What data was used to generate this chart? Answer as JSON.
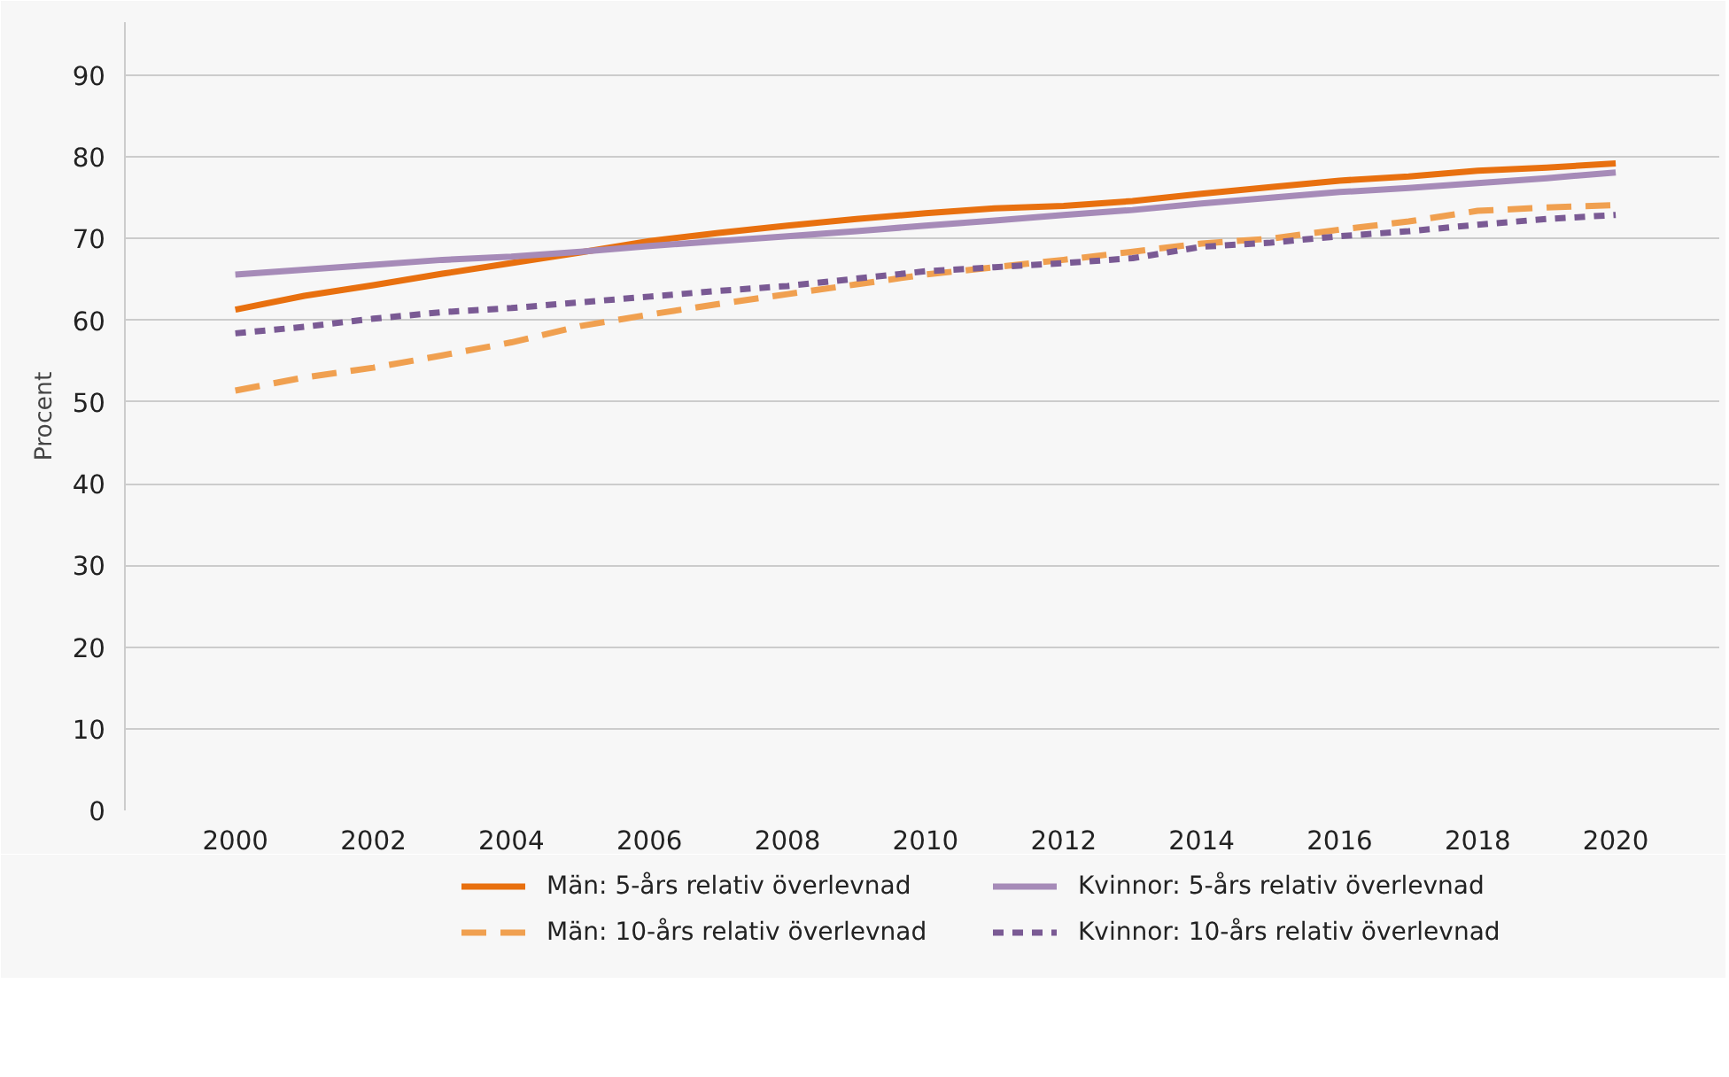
{
  "chart_data": {
    "type": "line",
    "ylabel": "Procent",
    "x": [
      2000,
      2001,
      2002,
      2003,
      2004,
      2005,
      2006,
      2007,
      2008,
      2009,
      2010,
      2011,
      2012,
      2013,
      2014,
      2015,
      2016,
      2017,
      2018,
      2019,
      2020
    ],
    "series": [
      {
        "name": "Män: 5-års relativ överlevnad",
        "color": "#e8700f",
        "line_style": "solid",
        "values": [
          61.3,
          63,
          64.3,
          65.7,
          67,
          68.3,
          69.7,
          70.7,
          71.6,
          72.4,
          73.1,
          73.7,
          74,
          74.6,
          75.5,
          76.3,
          77.1,
          77.6,
          78.3,
          78.7,
          79.2
        ]
      },
      {
        "name": "Män: 10-års relativ överlevnad",
        "color": "#f0a050",
        "line_style": "dashed",
        "values": [
          51.4,
          53,
          54.2,
          55.7,
          57.3,
          59.3,
          60.7,
          62,
          63.2,
          64.4,
          65.6,
          66.5,
          67.4,
          68.4,
          69.4,
          70,
          71.1,
          72.1,
          73.4,
          73.8,
          74.1
        ]
      },
      {
        "name": "Kvinnor: 5-års relativ överlevnad",
        "color": "#a68bb8",
        "line_style": "solid",
        "values": [
          65.6,
          66.2,
          66.8,
          67.4,
          67.8,
          68.4,
          69.1,
          69.7,
          70.3,
          70.9,
          71.6,
          72.2,
          72.9,
          73.5,
          74.3,
          75,
          75.7,
          76.2,
          76.8,
          77.4,
          78.1
        ]
      },
      {
        "name": "Kvinnor: 10-års relativ överlevnad",
        "color": "#7a5a94",
        "line_style": "dotted",
        "values": [
          58.4,
          59.2,
          60.2,
          61,
          61.5,
          62.2,
          62.9,
          63.6,
          64.2,
          65.1,
          66,
          66.5,
          67,
          67.6,
          69,
          69.5,
          70.3,
          70.9,
          71.7,
          72.4,
          72.9
        ]
      }
    ],
    "xlim": [
      1998.4,
      2021.5
    ],
    "ylim": [
      0,
      96.5
    ],
    "xticks": [
      2000,
      2002,
      2004,
      2006,
      2008,
      2010,
      2012,
      2014,
      2016,
      2018,
      2020
    ],
    "yticks": [
      0,
      10,
      20,
      30,
      40,
      50,
      60,
      70,
      80,
      90
    ],
    "grid": "y",
    "legend": "bottom",
    "marker": "none"
  }
}
